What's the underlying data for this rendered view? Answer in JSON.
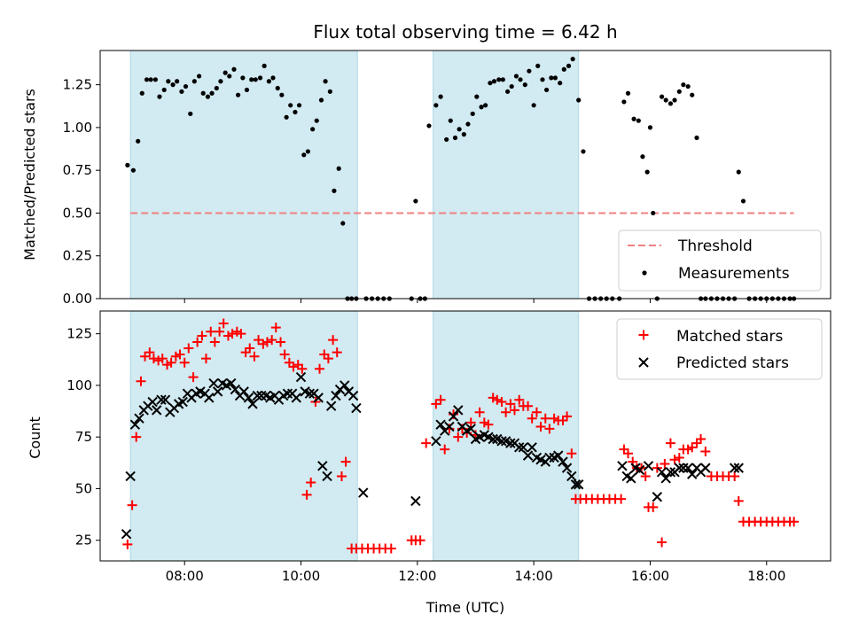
{
  "title": "Flux total observing time = 6.42 h",
  "chart_data": [
    {
      "type": "scatter",
      "panel": "top",
      "ylabel": "Matched/Predicted stars",
      "ylim": [
        0,
        1.45
      ],
      "yticks": [
        "0.00",
        "0.25",
        "0.50",
        "0.75",
        "1.00",
        "1.25"
      ],
      "ytick_values": [
        0,
        0.25,
        0.5,
        0.75,
        1.0,
        1.25
      ],
      "xlim": [
        6.55,
        19.1
      ],
      "shaded_spans": [
        [
          7.07,
          10.97
        ],
        [
          12.27,
          14.77
        ]
      ],
      "legend": {
        "position": "lower right",
        "entries": [
          "Threshold",
          "Measurements"
        ]
      },
      "threshold": {
        "name": "Threshold",
        "y": 0.5,
        "x": [
          7.07,
          18.47
        ],
        "color": "#f08080"
      },
      "measurements": {
        "name": "Measurements",
        "color": "#000000",
        "x": [
          7.02,
          7.12,
          7.2,
          7.27,
          7.35,
          7.42,
          7.5,
          7.57,
          7.65,
          7.72,
          7.8,
          7.87,
          7.95,
          8.02,
          8.1,
          8.17,
          8.25,
          8.32,
          8.4,
          8.47,
          8.55,
          8.62,
          8.7,
          8.77,
          8.85,
          8.92,
          9.0,
          9.07,
          9.15,
          9.22,
          9.3,
          9.37,
          9.45,
          9.52,
          9.6,
          9.67,
          9.75,
          9.82,
          9.9,
          9.97,
          10.05,
          10.12,
          10.2,
          10.27,
          10.35,
          10.42,
          10.5,
          10.57,
          10.65,
          10.72,
          10.8,
          10.87,
          10.95,
          11.12,
          11.22,
          11.32,
          11.42,
          11.52,
          11.9,
          11.97,
          12.05,
          12.13,
          12.2,
          12.32,
          12.4,
          12.5,
          12.57,
          12.65,
          12.72,
          12.8,
          12.87,
          12.95,
          13.02,
          13.1,
          13.17,
          13.25,
          13.32,
          13.4,
          13.47,
          13.55,
          13.62,
          13.7,
          13.77,
          13.85,
          13.92,
          14.0,
          14.07,
          14.15,
          14.22,
          14.3,
          14.37,
          14.45,
          14.52,
          14.6,
          14.67,
          14.77,
          14.85,
          14.95,
          15.05,
          15.15,
          15.25,
          15.35,
          15.47,
          15.55,
          15.62,
          15.72,
          15.8,
          15.87,
          15.95,
          16.0,
          16.05,
          16.12,
          16.2,
          16.27,
          16.35,
          16.42,
          16.5,
          16.57,
          16.65,
          16.72,
          16.8,
          16.87,
          16.95,
          17.05,
          17.15,
          17.25,
          17.35,
          17.45,
          17.52,
          17.6,
          17.7,
          17.8,
          17.9,
          18.0,
          18.1,
          18.2,
          18.3,
          18.4,
          18.47
        ],
        "y": [
          0.78,
          0.75,
          0.92,
          1.2,
          1.28,
          1.28,
          1.28,
          1.18,
          1.22,
          1.27,
          1.25,
          1.27,
          1.21,
          1.24,
          1.08,
          1.27,
          1.3,
          1.2,
          1.18,
          1.2,
          1.23,
          1.27,
          1.32,
          1.3,
          1.34,
          1.19,
          1.29,
          1.22,
          1.28,
          1.28,
          1.29,
          1.36,
          1.27,
          1.29,
          1.23,
          1.19,
          1.06,
          1.13,
          1.09,
          1.13,
          0.84,
          0.86,
          0.99,
          1.04,
          1.16,
          1.27,
          1.21,
          0.63,
          0.76,
          0.44,
          0.0,
          0.0,
          0.0,
          0.0,
          0.0,
          0.0,
          0.0,
          0.0,
          0.0,
          0.57,
          0.0,
          0.0,
          1.01,
          1.13,
          1.18,
          0.93,
          1.04,
          0.94,
          0.99,
          0.96,
          1.02,
          1.08,
          1.18,
          1.12,
          1.13,
          1.26,
          1.27,
          1.28,
          1.28,
          1.21,
          1.24,
          1.3,
          1.28,
          1.25,
          1.33,
          1.13,
          1.36,
          1.28,
          1.22,
          1.29,
          1.29,
          1.26,
          1.34,
          1.36,
          1.4,
          1.16,
          0.86,
          0.0,
          0.0,
          0.0,
          0.0,
          0.0,
          0.0,
          1.15,
          1.2,
          1.05,
          1.04,
          0.83,
          0.74,
          1.0,
          0.5,
          0.0,
          1.18,
          1.16,
          1.14,
          1.16,
          1.21,
          1.25,
          1.24,
          1.19,
          0.94,
          0.0,
          0.0,
          0.0,
          0.0,
          0.0,
          0.0,
          0.0,
          0.74,
          0.57,
          0.0,
          0.0,
          0.0,
          0.0,
          0.0,
          0.0,
          0.0,
          0.0,
          0.0
        ]
      }
    },
    {
      "type": "scatter",
      "panel": "bottom",
      "xlabel": "Time (UTC)",
      "ylabel": "Count",
      "ylim": [
        15,
        136
      ],
      "yticks": [
        "25",
        "50",
        "75",
        "100",
        "125"
      ],
      "ytick_values": [
        25,
        50,
        75,
        100,
        125
      ],
      "xlim": [
        6.55,
        19.1
      ],
      "xticks": [
        "08:00",
        "10:00",
        "12:00",
        "14:00",
        "16:00",
        "18:00"
      ],
      "xtick_values": [
        8,
        10,
        12,
        14,
        16,
        18
      ],
      "shaded_spans": [
        [
          7.07,
          10.97
        ],
        [
          12.27,
          14.77
        ]
      ],
      "legend": {
        "position": "upper right",
        "entries": [
          "Matched stars",
          "Predicted stars"
        ]
      },
      "series": [
        {
          "name": "Matched stars",
          "marker": "+",
          "color": "#ff0000",
          "x": [
            7.02,
            7.1,
            7.17,
            7.25,
            7.32,
            7.4,
            7.47,
            7.55,
            7.62,
            7.7,
            7.77,
            7.85,
            7.92,
            8.0,
            8.07,
            8.15,
            8.22,
            8.3,
            8.37,
            8.45,
            8.52,
            8.6,
            8.67,
            8.75,
            8.82,
            8.9,
            8.97,
            9.05,
            9.12,
            9.2,
            9.27,
            9.35,
            9.42,
            9.5,
            9.57,
            9.65,
            9.72,
            9.8,
            9.87,
            9.95,
            10.02,
            10.1,
            10.17,
            10.25,
            10.32,
            10.4,
            10.47,
            10.55,
            10.62,
            10.7,
            10.77,
            10.87,
            10.95,
            11.05,
            11.15,
            11.25,
            11.35,
            11.45,
            11.55,
            11.9,
            11.97,
            12.05,
            12.15,
            12.32,
            12.4,
            12.47,
            12.55,
            12.62,
            12.7,
            12.77,
            12.85,
            12.92,
            13.0,
            13.07,
            13.15,
            13.22,
            13.3,
            13.37,
            13.45,
            13.52,
            13.6,
            13.67,
            13.75,
            13.82,
            13.9,
            13.97,
            14.05,
            14.12,
            14.2,
            14.27,
            14.35,
            14.42,
            14.5,
            14.57,
            14.65,
            14.72,
            14.8,
            14.9,
            15.0,
            15.1,
            15.2,
            15.3,
            15.4,
            15.5,
            15.55,
            15.62,
            15.7,
            15.77,
            15.85,
            15.92,
            15.97,
            16.05,
            16.12,
            16.2,
            16.25,
            16.35,
            16.42,
            16.5,
            16.57,
            16.65,
            16.72,
            16.8,
            16.87,
            16.95,
            17.05,
            17.15,
            17.25,
            17.35,
            17.45,
            17.52,
            17.6,
            17.7,
            17.8,
            17.9,
            18.0,
            18.1,
            18.2,
            18.3,
            18.4,
            18.47
          ],
          "y": [
            23,
            42,
            75,
            102,
            114,
            116,
            113,
            112,
            113,
            110,
            111,
            114,
            115,
            111,
            118,
            104,
            121,
            124,
            113,
            126,
            121,
            126,
            130,
            124,
            125,
            126,
            125,
            116,
            118,
            114,
            122,
            120,
            121,
            122,
            128,
            121,
            115,
            111,
            109,
            110,
            108,
            47,
            53,
            92,
            108,
            115,
            113,
            122,
            116,
            56,
            63,
            21,
            21,
            21,
            21,
            21,
            21,
            21,
            21,
            25,
            25,
            25,
            72,
            91,
            93,
            69,
            79,
            86,
            75,
            79,
            77,
            82,
            76,
            87,
            82,
            81,
            94,
            93,
            92,
            87,
            91,
            88,
            93,
            90,
            90,
            84,
            87,
            80,
            84,
            79,
            84,
            83,
            83,
            85,
            67,
            45,
            45,
            45,
            45,
            45,
            45,
            45,
            45,
            45,
            69,
            67,
            63,
            60,
            60,
            56,
            41,
            41,
            60,
            24,
            62,
            72,
            64,
            65,
            69,
            69,
            70,
            72,
            74,
            68,
            56,
            56,
            56,
            56,
            56,
            44,
            34,
            34,
            34,
            34,
            34,
            34,
            34,
            34,
            34,
            34
          ]
        },
        {
          "name": "Predicted stars",
          "marker": "x",
          "color": "#000000",
          "x": [
            7.0,
            7.07,
            7.15,
            7.22,
            7.3,
            7.37,
            7.45,
            7.52,
            7.6,
            7.67,
            7.75,
            7.82,
            7.9,
            7.97,
            8.05,
            8.12,
            8.2,
            8.27,
            8.35,
            8.42,
            8.5,
            8.57,
            8.65,
            8.72,
            8.8,
            8.87,
            8.95,
            9.02,
            9.1,
            9.17,
            9.25,
            9.32,
            9.4,
            9.47,
            9.55,
            9.62,
            9.7,
            9.77,
            9.85,
            9.92,
            10.0,
            10.07,
            10.15,
            10.22,
            10.3,
            10.37,
            10.45,
            10.52,
            10.6,
            10.67,
            10.75,
            10.82,
            10.9,
            10.95,
            11.07,
            11.97,
            12.32,
            12.4,
            12.47,
            12.55,
            12.62,
            12.7,
            12.77,
            12.85,
            12.92,
            13.0,
            13.07,
            13.15,
            13.22,
            13.3,
            13.37,
            13.45,
            13.52,
            13.6,
            13.67,
            13.75,
            13.82,
            13.9,
            13.97,
            14.05,
            14.12,
            14.2,
            14.27,
            14.35,
            14.42,
            14.5,
            14.57,
            14.65,
            14.72,
            14.77,
            15.52,
            15.6,
            15.67,
            15.75,
            15.82,
            15.97,
            16.12,
            16.2,
            16.27,
            16.35,
            16.42,
            16.5,
            16.57,
            16.65,
            16.72,
            16.8,
            16.87,
            16.95,
            17.45,
            17.52
          ],
          "y": [
            28,
            56,
            81,
            84,
            88,
            90,
            92,
            88,
            93,
            93,
            87,
            89,
            91,
            92,
            96,
            94,
            96,
            97,
            96,
            94,
            101,
            97,
            101,
            100,
            101,
            98,
            95,
            97,
            94,
            91,
            95,
            95,
            95,
            94,
            95,
            93,
            95,
            96,
            96,
            94,
            104,
            97,
            96,
            96,
            94,
            61,
            56,
            90,
            95,
            98,
            100,
            97,
            95,
            89,
            48,
            44,
            73,
            81,
            78,
            80,
            85,
            88,
            80,
            78,
            79,
            74,
            75,
            76,
            75,
            74,
            74,
            73,
            73,
            72,
            72,
            70,
            70,
            66,
            70,
            65,
            64,
            63,
            65,
            65,
            66,
            63,
            60,
            56,
            52,
            52,
            61,
            56,
            55,
            60,
            59,
            61,
            46,
            58,
            55,
            58,
            58,
            60,
            60,
            60,
            57,
            60,
            58,
            60,
            60,
            60
          ]
        }
      ]
    }
  ]
}
